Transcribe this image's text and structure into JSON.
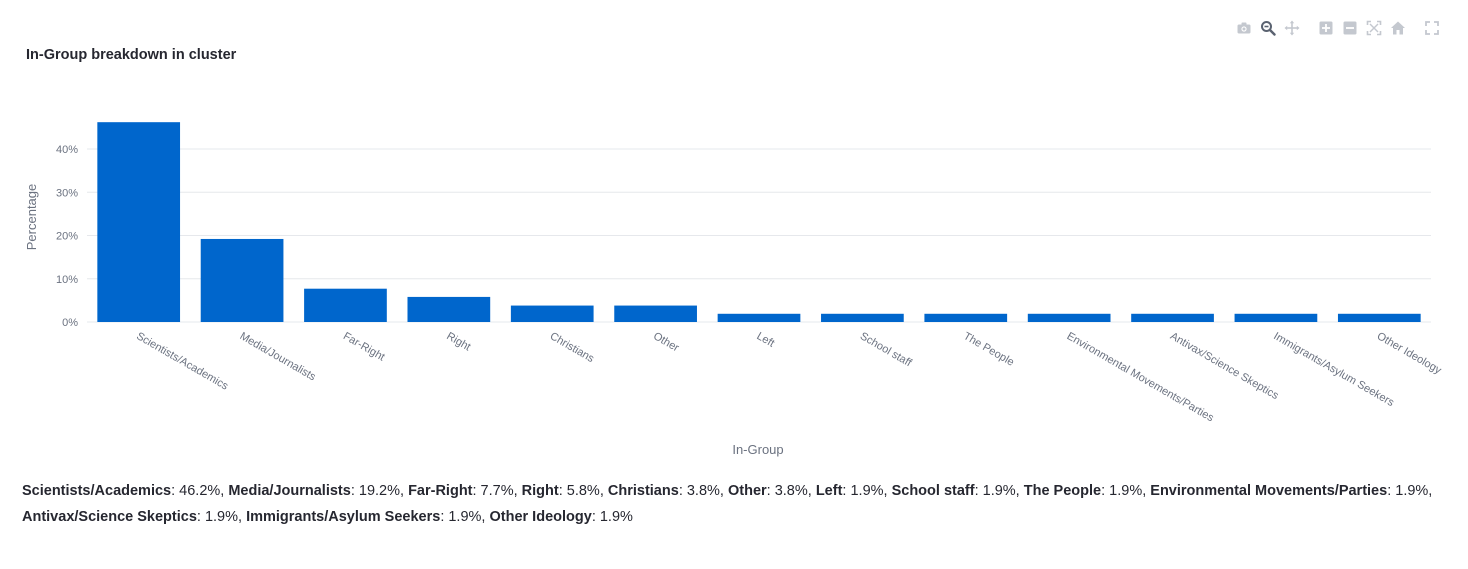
{
  "toolbar": {
    "buttons": [
      {
        "name": "camera-icon"
      },
      {
        "name": "zoom-icon"
      },
      {
        "name": "pan-icon"
      },
      {
        "name": "zoom-in-icon"
      },
      {
        "name": "zoom-out-icon"
      },
      {
        "name": "autoscale-icon"
      },
      {
        "name": "reset-axes-icon"
      },
      {
        "name": "fullscreen-icon"
      }
    ]
  },
  "chart_data": {
    "type": "bar",
    "title": "In-Group breakdown in cluster",
    "xlabel": "In-Group",
    "ylabel": "Percentage",
    "ylim": [
      0,
      0.5
    ],
    "yticks": [
      "0%",
      "10%",
      "20%",
      "30%",
      "40%"
    ],
    "ytick_values": [
      0,
      0.1,
      0.2,
      0.3,
      0.4
    ],
    "grid": true,
    "bar_color": "#0066cc",
    "categories": [
      "Scientists/Academics",
      "Media/Journalists",
      "Far-Right",
      "Right",
      "Christians",
      "Other",
      "Left",
      "School staff",
      "The People",
      "Environmental Movements/Parties",
      "Antivax/Science Skeptics",
      "Immigrants/Asylum Seekers",
      "Other Ideology"
    ],
    "values": [
      0.462,
      0.192,
      0.077,
      0.058,
      0.038,
      0.038,
      0.019,
      0.019,
      0.019,
      0.019,
      0.019,
      0.019,
      0.019
    ]
  },
  "summary": [
    {
      "label": "Scientists/Academics",
      "value": ": 46.2%, "
    },
    {
      "label": "Media/Journalists",
      "value": ": 19.2%, "
    },
    {
      "label": "Far-Right",
      "value": ": 7.7%, "
    },
    {
      "label": "Right",
      "value": ": 5.8%, "
    },
    {
      "label": "Christians",
      "value": ": 3.8%, "
    },
    {
      "label": "Other",
      "value": ": 3.8%, "
    },
    {
      "label": "Left",
      "value": ": 1.9%, "
    },
    {
      "label": "School staff",
      "value": ": 1.9%, "
    },
    {
      "label": "The People",
      "value": ": 1.9%, "
    },
    {
      "label": "Environmental Movements/Parties",
      "value": ": 1.9%, "
    },
    {
      "label": "Antivax/Science Skeptics",
      "value": ": 1.9%, "
    },
    {
      "label": "Immigrants/Asylum Seekers",
      "value": ": 1.9%, "
    },
    {
      "label": "Other Ideology",
      "value": ": 1.9%"
    }
  ]
}
